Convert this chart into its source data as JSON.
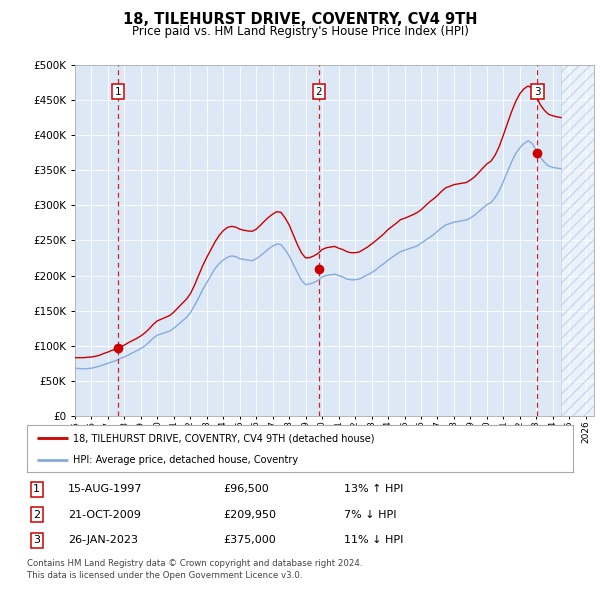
{
  "title": "18, TILEHURST DRIVE, COVENTRY, CV4 9TH",
  "subtitle": "Price paid vs. HM Land Registry's House Price Index (HPI)",
  "ytick_values": [
    0,
    50000,
    100000,
    150000,
    200000,
    250000,
    300000,
    350000,
    400000,
    450000,
    500000
  ],
  "ylim": [
    0,
    500000
  ],
  "xlim_start": 1995.0,
  "xlim_end": 2026.5,
  "plot_bg_color": "#dce8f5",
  "sale1_date": "15-AUG-1997",
  "sale1_price": 96500,
  "sale1_year": 1997.62,
  "sale1_hpi_pct": "13% ↑ HPI",
  "sale2_date": "21-OCT-2009",
  "sale2_price": 209950,
  "sale2_year": 2009.8,
  "sale2_hpi_pct": "7% ↓ HPI",
  "sale3_date": "26-JAN-2023",
  "sale3_price": 375000,
  "sale3_year": 2023.07,
  "sale3_hpi_pct": "11% ↓ HPI",
  "legend_label_red": "18, TILEHURST DRIVE, COVENTRY, CV4 9TH (detached house)",
  "legend_label_blue": "HPI: Average price, detached house, Coventry",
  "footer_line1": "Contains HM Land Registry data © Crown copyright and database right 2024.",
  "footer_line2": "This data is licensed under the Open Government Licence v3.0.",
  "red_color": "#cc0000",
  "blue_color": "#88aadd",
  "hpi_years": [
    1995.0,
    1995.25,
    1995.5,
    1995.75,
    1996.0,
    1996.25,
    1996.5,
    1996.75,
    1997.0,
    1997.25,
    1997.5,
    1997.75,
    1998.0,
    1998.25,
    1998.5,
    1998.75,
    1999.0,
    1999.25,
    1999.5,
    1999.75,
    2000.0,
    2000.25,
    2000.5,
    2000.75,
    2001.0,
    2001.25,
    2001.5,
    2001.75,
    2002.0,
    2002.25,
    2002.5,
    2002.75,
    2003.0,
    2003.25,
    2003.5,
    2003.75,
    2004.0,
    2004.25,
    2004.5,
    2004.75,
    2005.0,
    2005.25,
    2005.5,
    2005.75,
    2006.0,
    2006.25,
    2006.5,
    2006.75,
    2007.0,
    2007.25,
    2007.5,
    2007.75,
    2008.0,
    2008.25,
    2008.5,
    2008.75,
    2009.0,
    2009.25,
    2009.5,
    2009.75,
    2010.0,
    2010.25,
    2010.5,
    2010.75,
    2011.0,
    2011.25,
    2011.5,
    2011.75,
    2012.0,
    2012.25,
    2012.5,
    2012.75,
    2013.0,
    2013.25,
    2013.5,
    2013.75,
    2014.0,
    2014.25,
    2014.5,
    2014.75,
    2015.0,
    2015.25,
    2015.5,
    2015.75,
    2016.0,
    2016.25,
    2016.5,
    2016.75,
    2017.0,
    2017.25,
    2017.5,
    2017.75,
    2018.0,
    2018.25,
    2018.5,
    2018.75,
    2019.0,
    2019.25,
    2019.5,
    2019.75,
    2020.0,
    2020.25,
    2020.5,
    2020.75,
    2021.0,
    2021.25,
    2021.5,
    2021.75,
    2022.0,
    2022.25,
    2022.5,
    2022.75,
    2023.0,
    2023.25,
    2023.5,
    2023.75,
    2024.0,
    2024.25,
    2024.5
  ],
  "hpi_values": [
    68000,
    67500,
    67000,
    67500,
    68000,
    69500,
    71000,
    73000,
    75000,
    77000,
    79000,
    82000,
    84000,
    87000,
    90000,
    93000,
    96000,
    100000,
    105000,
    111000,
    115000,
    117000,
    119000,
    121000,
    125000,
    130000,
    135000,
    140000,
    147000,
    157000,
    168000,
    180000,
    190000,
    200000,
    210000,
    217000,
    222000,
    226000,
    228000,
    227000,
    224000,
    223000,
    222000,
    221000,
    224000,
    228000,
    233000,
    238000,
    242000,
    245000,
    244000,
    237000,
    228000,
    216000,
    204000,
    193000,
    187000,
    188000,
    190000,
    193000,
    198000,
    200000,
    201000,
    202000,
    200000,
    198000,
    195000,
    194000,
    194000,
    195000,
    198000,
    201000,
    204000,
    208000,
    213000,
    217000,
    222000,
    226000,
    230000,
    234000,
    236000,
    238000,
    240000,
    242000,
    246000,
    250000,
    254000,
    258000,
    263000,
    268000,
    272000,
    274000,
    276000,
    277000,
    278000,
    279000,
    282000,
    286000,
    291000,
    296000,
    301000,
    304000,
    311000,
    321000,
    334000,
    348000,
    362000,
    374000,
    382000,
    388000,
    392000,
    388000,
    378000,
    368000,
    361000,
    356000,
    354000,
    353000,
    352000
  ],
  "red_years": [
    1995.0,
    1995.25,
    1995.5,
    1995.75,
    1996.0,
    1996.25,
    1996.5,
    1996.75,
    1997.0,
    1997.25,
    1997.5,
    1997.75,
    1998.0,
    1998.25,
    1998.5,
    1998.75,
    1999.0,
    1999.25,
    1999.5,
    1999.75,
    2000.0,
    2000.25,
    2000.5,
    2000.75,
    2001.0,
    2001.25,
    2001.5,
    2001.75,
    2002.0,
    2002.25,
    2002.5,
    2002.75,
    2003.0,
    2003.25,
    2003.5,
    2003.75,
    2004.0,
    2004.25,
    2004.5,
    2004.75,
    2005.0,
    2005.25,
    2005.5,
    2005.75,
    2006.0,
    2006.25,
    2006.5,
    2006.75,
    2007.0,
    2007.25,
    2007.5,
    2007.75,
    2008.0,
    2008.25,
    2008.5,
    2008.75,
    2009.0,
    2009.25,
    2009.5,
    2009.75,
    2010.0,
    2010.25,
    2010.5,
    2010.75,
    2011.0,
    2011.25,
    2011.5,
    2011.75,
    2012.0,
    2012.25,
    2012.5,
    2012.75,
    2013.0,
    2013.25,
    2013.5,
    2013.75,
    2014.0,
    2014.25,
    2014.5,
    2014.75,
    2015.0,
    2015.25,
    2015.5,
    2015.75,
    2016.0,
    2016.25,
    2016.5,
    2016.75,
    2017.0,
    2017.25,
    2017.5,
    2017.75,
    2018.0,
    2018.25,
    2018.5,
    2018.75,
    2019.0,
    2019.25,
    2019.5,
    2019.75,
    2020.0,
    2020.25,
    2020.5,
    2020.75,
    2021.0,
    2021.25,
    2021.5,
    2021.75,
    2022.0,
    2022.25,
    2022.5,
    2022.75,
    2023.0,
    2023.25,
    2023.5,
    2023.75,
    2024.0,
    2024.25,
    2024.5
  ],
  "red_values": [
    83000,
    83000,
    83000,
    83500,
    84000,
    85000,
    86500,
    89000,
    91000,
    93500,
    95500,
    98000,
    101000,
    104500,
    107500,
    110500,
    114000,
    118500,
    124000,
    130500,
    135500,
    138000,
    140500,
    143000,
    148000,
    154000,
    160000,
    166000,
    174000,
    186000,
    200000,
    214000,
    226000,
    237000,
    248000,
    257000,
    264000,
    268500,
    270000,
    269000,
    266000,
    264500,
    263500,
    263000,
    266000,
    271500,
    277500,
    283000,
    287500,
    291000,
    290000,
    282000,
    272000,
    258000,
    244000,
    232000,
    225000,
    225500,
    228000,
    231500,
    237000,
    239500,
    240500,
    241500,
    239000,
    237000,
    234000,
    232500,
    232500,
    233500,
    237000,
    240500,
    245000,
    249500,
    254500,
    259500,
    265500,
    270000,
    274500,
    279500,
    281500,
    284000,
    286500,
    289500,
    293500,
    299000,
    304500,
    309000,
    314000,
    320000,
    325000,
    327000,
    329500,
    330500,
    331500,
    332500,
    336000,
    340500,
    346500,
    353000,
    359000,
    363000,
    371500,
    384000,
    400000,
    417000,
    433500,
    448000,
    459000,
    466000,
    470000,
    467000,
    455000,
    443000,
    435000,
    429500,
    427500,
    426000,
    425000
  ],
  "hatch_region_start": 2024.5,
  "hatch_region_end": 2026.5
}
